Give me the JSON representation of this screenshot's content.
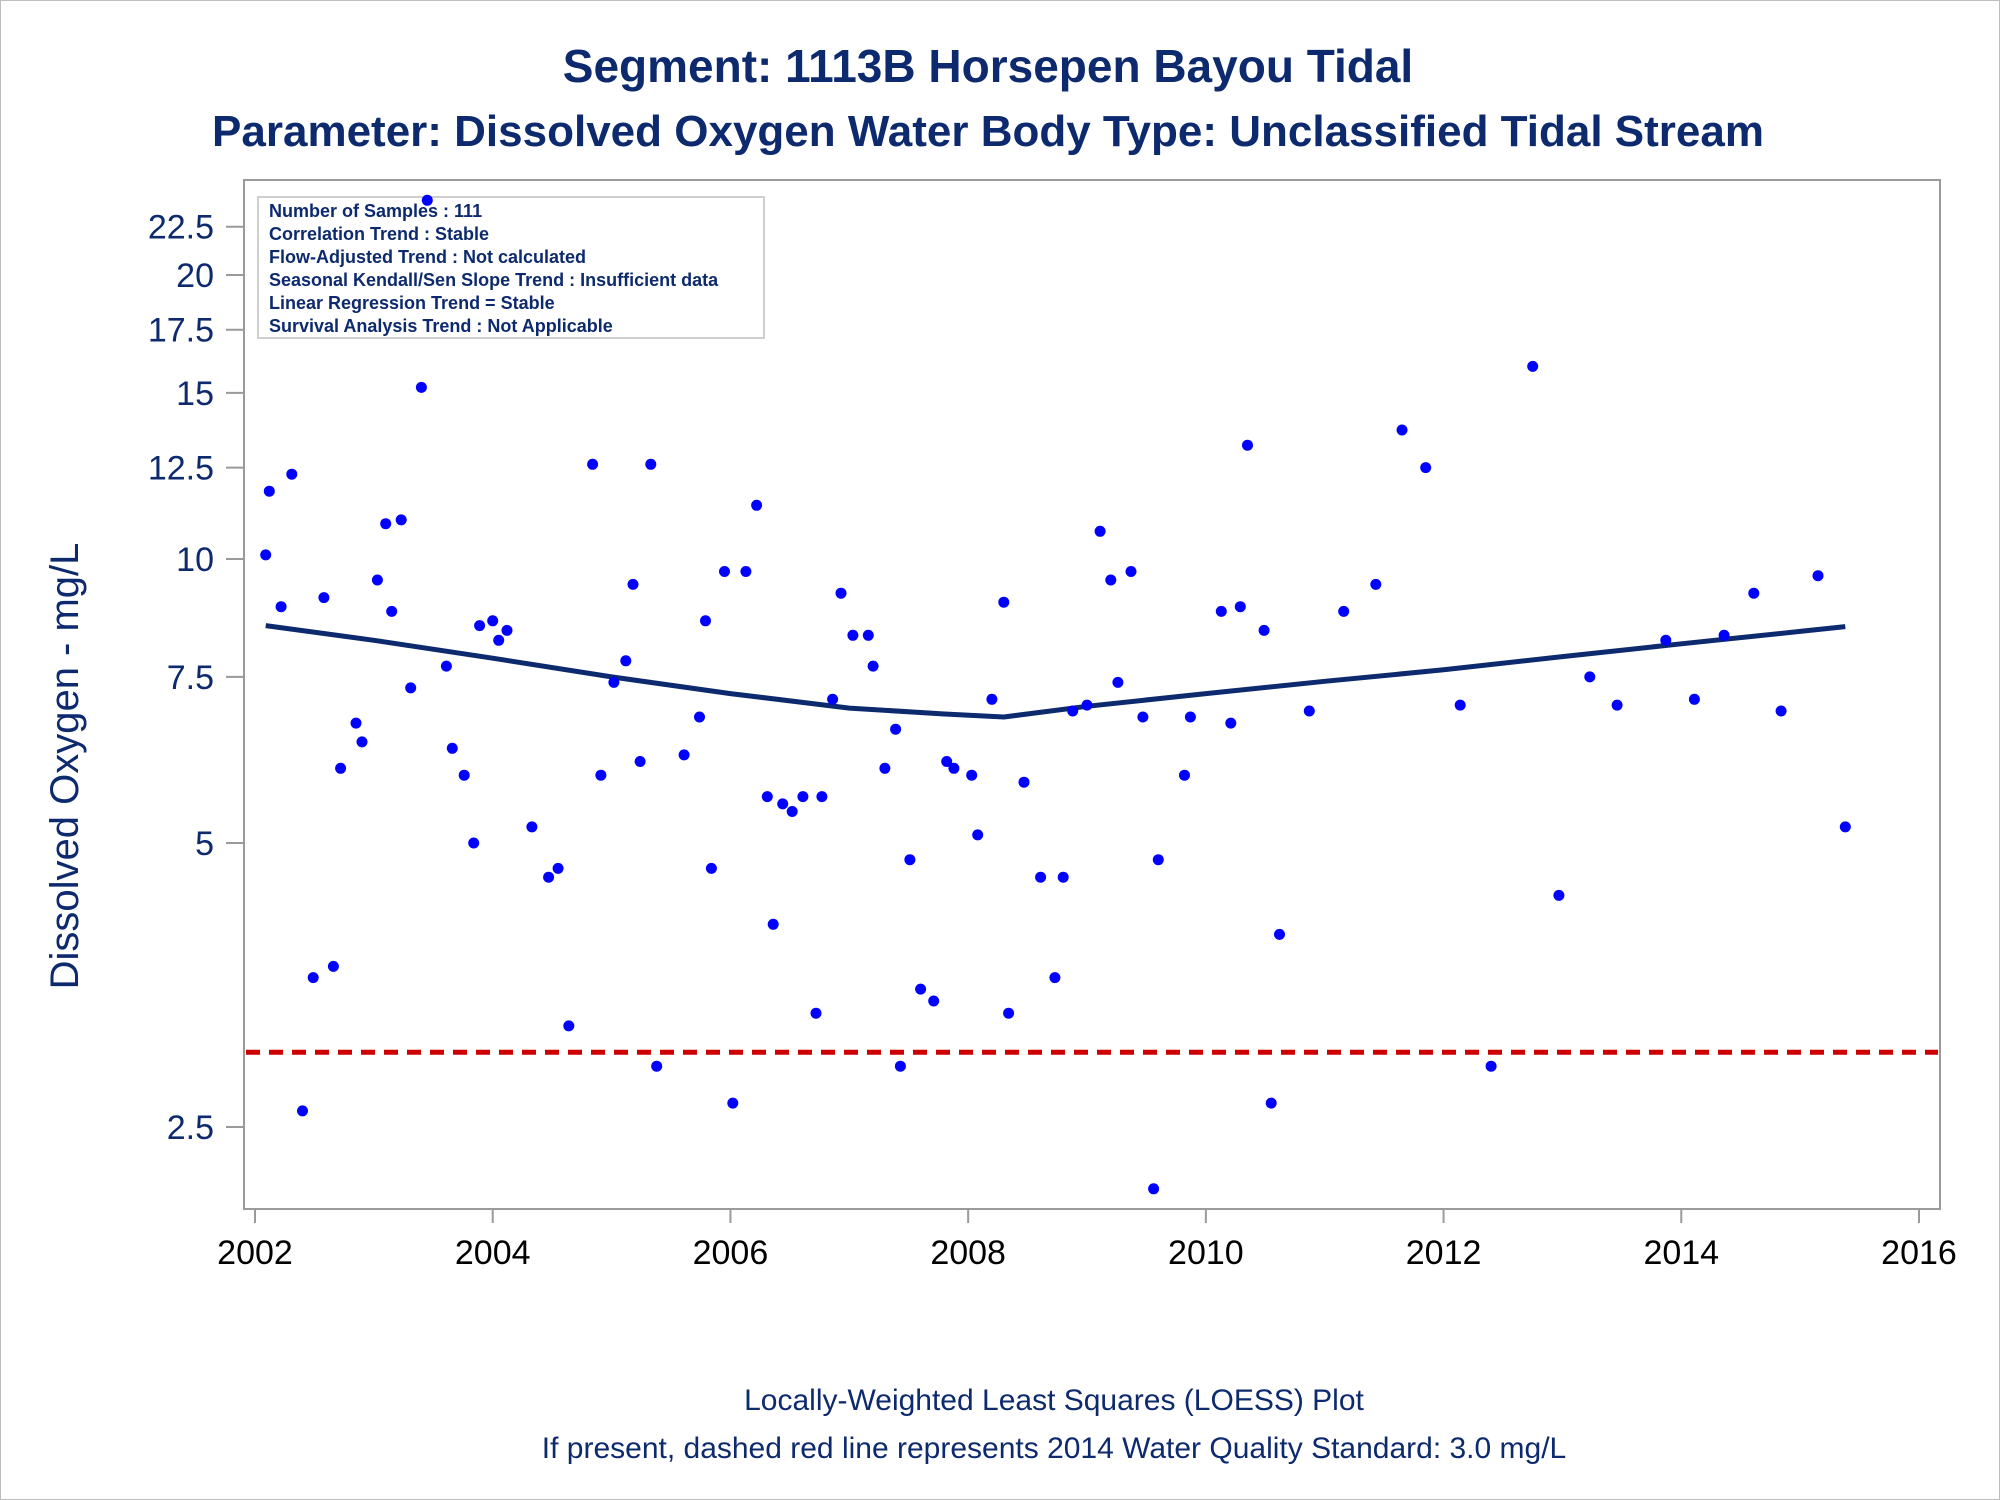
{
  "titles": {
    "line1": "Segment: 1113B  Horsepen Bayou Tidal",
    "line2": "Parameter: Dissolved Oxygen   Water Body Type: Unclassified Tidal Stream"
  },
  "info_box": [
    "Number of Samples : 111",
    "Correlation Trend : Stable",
    "Flow-Adjusted Trend : Not calculated",
    "Seasonal Kendall/Sen Slope Trend : Insufficient data",
    "Linear Regression Trend = Stable",
    "Survival Analysis Trend : Not Applicable"
  ],
  "footnotes": {
    "line1": "Locally-Weighted Least Squares (LOESS) Plot",
    "line2": "If present, dashed red line represents 2014 Water Quality Standard: 3.0 mg/L"
  },
  "colors": {
    "title": "#0d2a6e",
    "points": "#0000ff",
    "loess": "#0d2a6e",
    "standard": "#cc0000",
    "axis": "#9a9a9a"
  },
  "chart_data": {
    "type": "scatter",
    "title": "Segment: 1113B  Horsepen Bayou Tidal",
    "subtitle": "Parameter: Dissolved Oxygen   Water Body Type: Unclassified Tidal Stream",
    "ylabel": "Dissolved Oxygen - mg/L",
    "xlabel": "",
    "y_scale": "log",
    "xlim": [
      2002,
      2016
    ],
    "ylim": [
      2.1,
      25
    ],
    "x_ticks": [
      2002,
      2004,
      2006,
      2008,
      2010,
      2012,
      2014,
      2016
    ],
    "y_ticks": [
      {
        "value": 2.5,
        "label": "2.5"
      },
      {
        "value": 5,
        "label": "5"
      },
      {
        "value": 7.5,
        "label": "7.5"
      },
      {
        "value": 10,
        "label": "10"
      },
      {
        "value": 12.5,
        "label": "12.5"
      },
      {
        "value": 15,
        "label": "15"
      },
      {
        "value": 17.5,
        "label": "17.5"
      },
      {
        "value": 20,
        "label": "20"
      },
      {
        "value": 22.5,
        "label": "22.5"
      }
    ],
    "standard_line": {
      "value": 3.0,
      "style": "dashed"
    },
    "grid": false,
    "legend_placement": "top-left",
    "points": [
      [
        2002.09,
        10.1
      ],
      [
        2002.12,
        11.8
      ],
      [
        2002.22,
        8.9
      ],
      [
        2002.31,
        12.3
      ],
      [
        2002.4,
        2.6
      ],
      [
        2002.49,
        3.6
      ],
      [
        2002.58,
        9.1
      ],
      [
        2002.66,
        3.7
      ],
      [
        2002.72,
        6.0
      ],
      [
        2002.85,
        6.7
      ],
      [
        2002.9,
        6.4
      ],
      [
        2003.03,
        9.5
      ],
      [
        2003.1,
        10.9
      ],
      [
        2003.15,
        8.8
      ],
      [
        2003.23,
        11.0
      ],
      [
        2003.31,
        7.3
      ],
      [
        2003.4,
        15.2
      ],
      [
        2003.45,
        24.0
      ],
      [
        2003.61,
        7.7
      ],
      [
        2003.66,
        6.3
      ],
      [
        2003.76,
        5.9
      ],
      [
        2003.84,
        5.0
      ],
      [
        2003.89,
        8.5
      ],
      [
        2004.0,
        8.6
      ],
      [
        2004.05,
        8.2
      ],
      [
        2004.12,
        8.4
      ],
      [
        2004.33,
        5.2
      ],
      [
        2004.47,
        4.6
      ],
      [
        2004.55,
        4.7
      ],
      [
        2004.64,
        3.2
      ],
      [
        2004.84,
        12.6
      ],
      [
        2004.91,
        5.9
      ],
      [
        2005.02,
        7.4
      ],
      [
        2005.12,
        7.8
      ],
      [
        2005.18,
        9.4
      ],
      [
        2005.24,
        6.1
      ],
      [
        2005.33,
        12.6
      ],
      [
        2005.38,
        2.9
      ],
      [
        2005.61,
        6.2
      ],
      [
        2005.74,
        6.8
      ],
      [
        2005.79,
        8.6
      ],
      [
        2005.84,
        4.7
      ],
      [
        2005.95,
        9.7
      ],
      [
        2006.02,
        2.65
      ],
      [
        2006.13,
        9.7
      ],
      [
        2006.22,
        11.4
      ],
      [
        2006.31,
        5.6
      ],
      [
        2006.36,
        4.1
      ],
      [
        2006.44,
        5.5
      ],
      [
        2006.52,
        5.4
      ],
      [
        2006.61,
        5.6
      ],
      [
        2006.72,
        3.3
      ],
      [
        2006.77,
        5.6
      ],
      [
        2006.86,
        7.1
      ],
      [
        2006.93,
        9.2
      ],
      [
        2007.03,
        8.3
      ],
      [
        2007.16,
        8.3
      ],
      [
        2007.2,
        7.7
      ],
      [
        2007.3,
        6.0
      ],
      [
        2007.39,
        6.6
      ],
      [
        2007.43,
        2.9
      ],
      [
        2007.51,
        4.8
      ],
      [
        2007.6,
        3.5
      ],
      [
        2007.71,
        3.4
      ],
      [
        2007.82,
        6.1
      ],
      [
        2007.88,
        6.0
      ],
      [
        2008.03,
        5.9
      ],
      [
        2008.08,
        5.1
      ],
      [
        2008.2,
        7.1
      ],
      [
        2008.3,
        9.0
      ],
      [
        2008.34,
        3.3
      ],
      [
        2008.47,
        5.8
      ],
      [
        2008.61,
        4.6
      ],
      [
        2008.73,
        3.6
      ],
      [
        2008.8,
        4.6
      ],
      [
        2008.88,
        6.9
      ],
      [
        2009.0,
        7.0
      ],
      [
        2009.11,
        10.7
      ],
      [
        2009.2,
        9.5
      ],
      [
        2009.26,
        7.4
      ],
      [
        2009.37,
        9.7
      ],
      [
        2009.47,
        6.8
      ],
      [
        2009.56,
        2.15
      ],
      [
        2009.6,
        4.8
      ],
      [
        2009.82,
        5.9
      ],
      [
        2009.87,
        6.8
      ],
      [
        2010.13,
        8.8
      ],
      [
        2010.21,
        6.7
      ],
      [
        2010.29,
        8.9
      ],
      [
        2010.35,
        13.2
      ],
      [
        2010.49,
        8.4
      ],
      [
        2010.55,
        2.65
      ],
      [
        2010.62,
        4.0
      ],
      [
        2010.87,
        6.9
      ],
      [
        2011.16,
        8.8
      ],
      [
        2011.43,
        9.4
      ],
      [
        2011.65,
        13.7
      ],
      [
        2011.85,
        12.5
      ],
      [
        2012.14,
        7.0
      ],
      [
        2012.4,
        2.9
      ],
      [
        2012.75,
        16.0
      ],
      [
        2012.97,
        4.4
      ],
      [
        2013.23,
        7.5
      ],
      [
        2013.46,
        7.0
      ],
      [
        2013.87,
        8.2
      ],
      [
        2014.11,
        7.1
      ],
      [
        2014.36,
        8.3
      ],
      [
        2014.61,
        9.2
      ],
      [
        2014.84,
        6.9
      ],
      [
        2015.15,
        9.6
      ],
      [
        2015.38,
        5.2
      ]
    ],
    "loess": [
      [
        2002.09,
        8.5
      ],
      [
        2003.0,
        8.2
      ],
      [
        2004.0,
        7.85
      ],
      [
        2005.0,
        7.5
      ],
      [
        2006.0,
        7.2
      ],
      [
        2007.0,
        6.95
      ],
      [
        2007.8,
        6.85
      ],
      [
        2008.3,
        6.8
      ],
      [
        2009.0,
        6.98
      ],
      [
        2010.0,
        7.2
      ],
      [
        2011.0,
        7.42
      ],
      [
        2012.0,
        7.63
      ],
      [
        2013.0,
        7.88
      ],
      [
        2014.0,
        8.13
      ],
      [
        2015.0,
        8.38
      ],
      [
        2015.38,
        8.48
      ]
    ]
  }
}
